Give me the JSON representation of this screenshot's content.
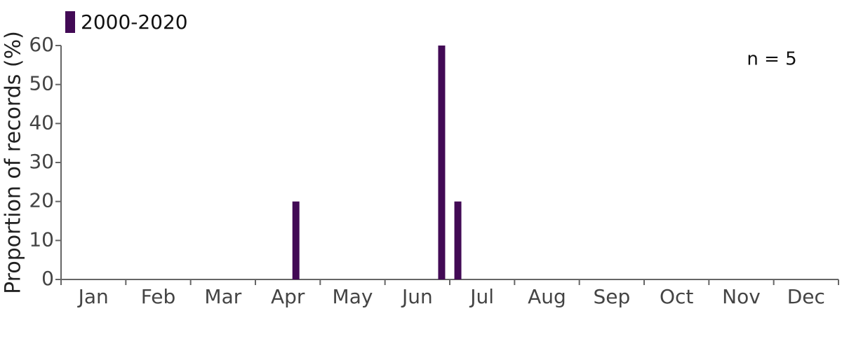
{
  "chart_data": {
    "type": "bar",
    "y_label": "Proportion of records (%)",
    "annotation": "n = 5",
    "categories": [
      "Jan",
      "Feb",
      "Mar",
      "Apr",
      "May",
      "Jun",
      "Jul",
      "Aug",
      "Sep",
      "Oct",
      "Nov",
      "Dec"
    ],
    "xlim": [
      0,
      12
    ],
    "xticks": [
      0,
      1,
      2,
      3,
      4,
      5,
      6,
      7,
      8,
      9,
      10,
      11,
      12
    ],
    "series": [
      {
        "name": "2000-2020",
        "color": "#420a55",
        "x": [
          3.625,
          5.875,
          6.125
        ],
        "values": [
          20,
          60,
          20
        ]
      }
    ],
    "ylim": [
      0,
      60
    ],
    "yticks": [
      0,
      10,
      20,
      30,
      40,
      50,
      60
    ],
    "legend": "top-left"
  }
}
